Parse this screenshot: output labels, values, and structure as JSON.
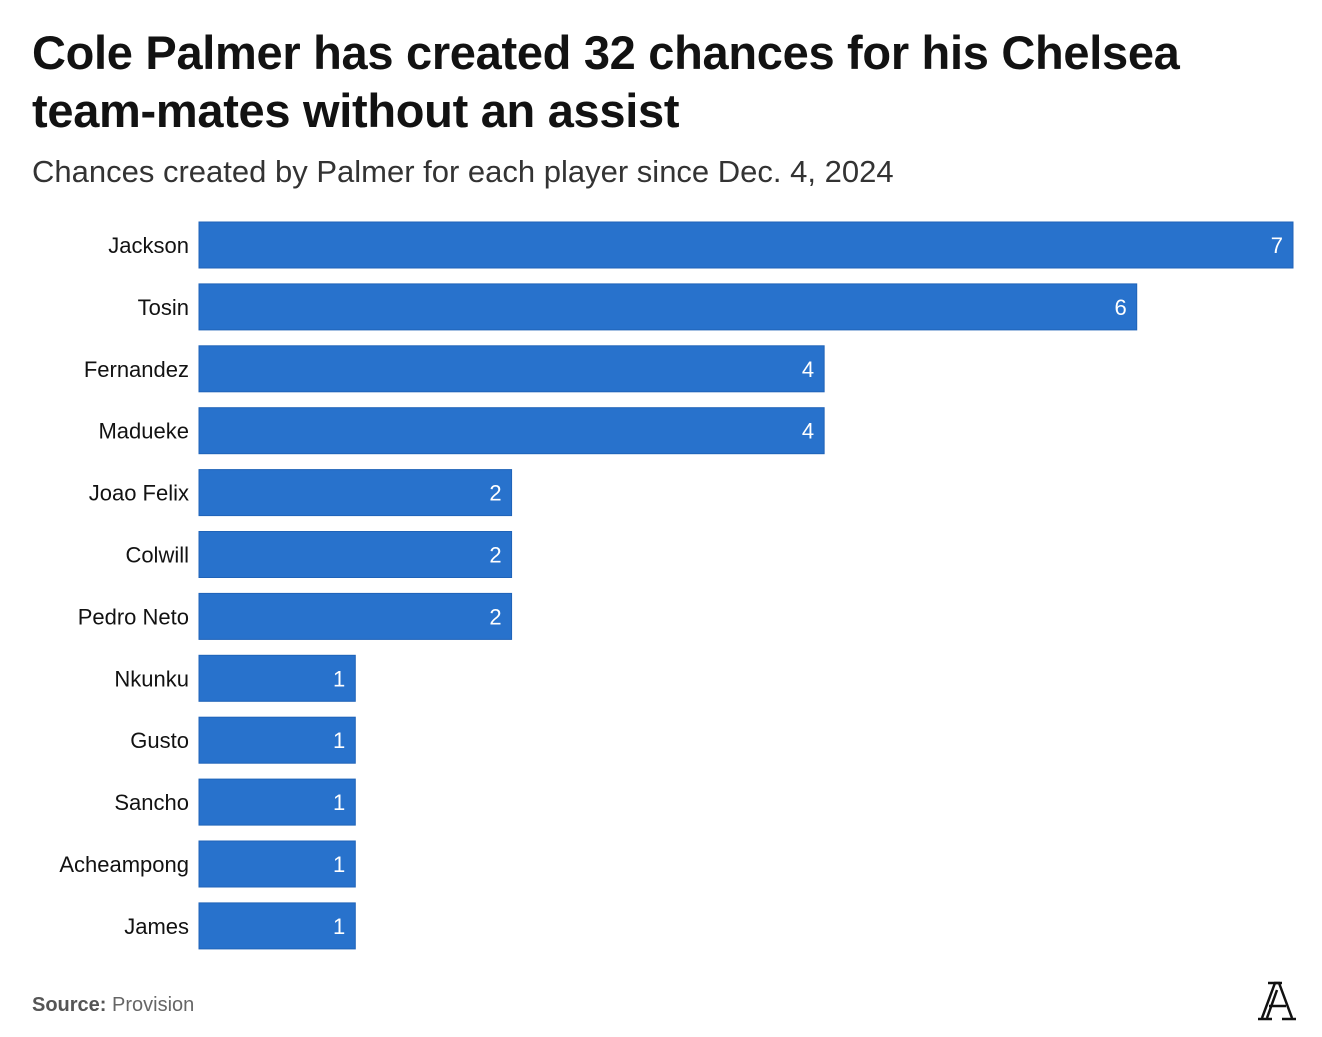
{
  "chart_data": {
    "type": "bar",
    "orientation": "horizontal",
    "title": "Cole Palmer has created 32 chances for his Chelsea team-mates without an assist",
    "subtitle": "Chances created by Palmer for each player since Dec. 4, 2024",
    "categories": [
      "Jackson",
      "Tosin",
      "Fernandez",
      "Madueke",
      "Joao Felix",
      "Colwill",
      "Pedro Neto",
      "Nkunku",
      "Gusto",
      "Sancho",
      "Acheampong",
      "James"
    ],
    "values": [
      7,
      6,
      4,
      4,
      2,
      2,
      2,
      1,
      1,
      1,
      1,
      1
    ],
    "xlim": [
      0,
      7
    ],
    "grid": false,
    "data_labels": true,
    "bar_color": "#2872cc",
    "label_color": "#ffffff"
  },
  "footer": {
    "source_label": "Source:",
    "source_value": "Provision"
  },
  "logo": {
    "text": "A",
    "name": "The Athletic"
  }
}
